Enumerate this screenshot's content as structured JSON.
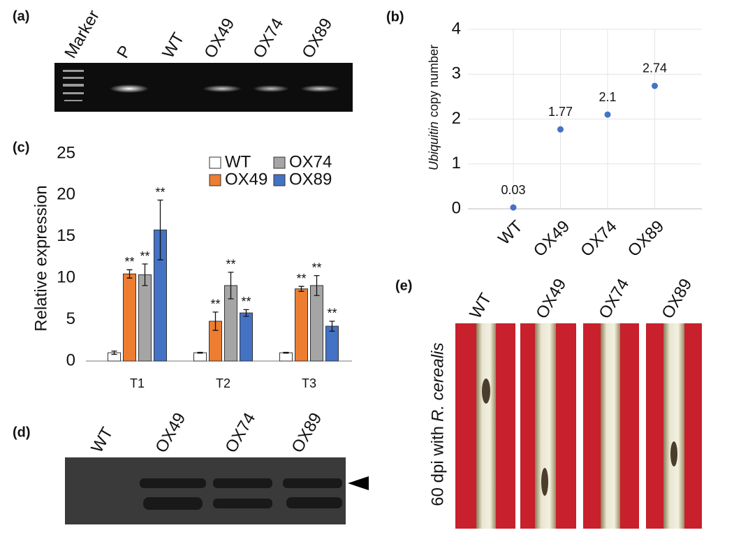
{
  "panel_a": {
    "label": "(a)",
    "lanes": [
      "Marker",
      "P",
      "WT",
      "OX49",
      "OX74",
      "OX89"
    ]
  },
  "chart_data": [
    {
      "type": "scatter",
      "label": "(b)",
      "y_label_italic": "Ubiquitin",
      "y_label": "copy number",
      "categories": [
        "WT",
        "OX49",
        "OX74",
        "OX89"
      ],
      "values": [
        0.03,
        1.77,
        2.1,
        2.74
      ],
      "color": "#4472c4",
      "ylim": [
        0,
        4
      ],
      "yticks": [
        0,
        1,
        2,
        3,
        4
      ],
      "grid": true
    },
    {
      "type": "bar",
      "label": "(c)",
      "y_label": "Relative expression",
      "categories": [
        "T1",
        "T2",
        "T3"
      ],
      "series": [
        {
          "name": "WT",
          "color": "#ffffff",
          "values": [
            1.0,
            1.0,
            1.0
          ],
          "errors": [
            0.2,
            0.05,
            0.05
          ]
        },
        {
          "name": "OX49",
          "color": "#ed7d31",
          "values": [
            10.5,
            4.8,
            8.7
          ],
          "errors": [
            0.5,
            1.1,
            0.3
          ],
          "significance": [
            "**",
            "**",
            "**"
          ]
        },
        {
          "name": "OX74",
          "color": "#a5a5a5",
          "values": [
            10.4,
            9.1,
            9.1
          ],
          "errors": [
            1.3,
            1.6,
            1.2
          ],
          "significance": [
            "**",
            "**",
            "**"
          ]
        },
        {
          "name": "OX89",
          "color": "#4472c4",
          "values": [
            15.8,
            5.8,
            4.2
          ],
          "errors": [
            3.6,
            0.4,
            0.6
          ],
          "significance": [
            "**",
            "**",
            "**"
          ]
        }
      ],
      "ylim": [
        0,
        25
      ],
      "yticks": [
        0,
        5,
        10,
        15,
        20,
        25
      ],
      "legend": "top-right"
    }
  ],
  "panel_d": {
    "label": "(d)",
    "lanes": [
      "WT",
      "OX49",
      "OX74",
      "OX89"
    ]
  },
  "panel_e": {
    "label": "(e)",
    "lanes": [
      "WT",
      "OX49",
      "OX74",
      "OX89"
    ],
    "side_label": "60 dpi with",
    "side_label_italic": "R. cerealis"
  }
}
